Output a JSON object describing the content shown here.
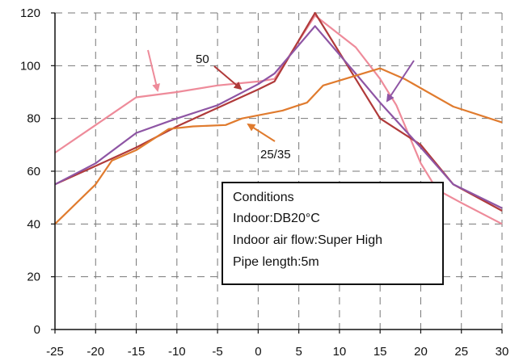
{
  "chart_data": {
    "type": "line",
    "title": "",
    "xlabel": "",
    "ylabel": "",
    "xlim": [
      -25,
      30
    ],
    "ylim": [
      0,
      120
    ],
    "x_ticks": [
      -25,
      -20,
      -15,
      -10,
      -5,
      0,
      5,
      10,
      15,
      20,
      25,
      30
    ],
    "y_ticks": [
      0,
      20,
      40,
      60,
      80,
      100,
      120
    ],
    "grid": "dashed",
    "series": [
      {
        "color": "#EE8B9A",
        "points": [
          [
            -25,
            67
          ],
          [
            -20,
            77.5
          ],
          [
            -15,
            88
          ],
          [
            -10,
            90
          ],
          [
            -5,
            92.5
          ],
          [
            0,
            94
          ],
          [
            2,
            95
          ],
          [
            7,
            119
          ],
          [
            12,
            107
          ],
          [
            15,
            95
          ],
          [
            17,
            85
          ],
          [
            20,
            63
          ],
          [
            22,
            53
          ],
          [
            25,
            48
          ],
          [
            30,
            40
          ]
        ]
      },
      {
        "color": "#B03A3A",
        "points": [
          [
            -25,
            55
          ],
          [
            -20,
            62
          ],
          [
            -15,
            69
          ],
          [
            -10,
            77
          ],
          [
            -5,
            84
          ],
          [
            0,
            91
          ],
          [
            2,
            94
          ],
          [
            7,
            120
          ],
          [
            12,
            95
          ],
          [
            15,
            80
          ],
          [
            20,
            70
          ],
          [
            24,
            55
          ],
          [
            30,
            45
          ]
        ]
      },
      {
        "color": "#8E55A4",
        "points": [
          [
            -25,
            55
          ],
          [
            -20,
            63
          ],
          [
            -15,
            74.5
          ],
          [
            -10,
            80
          ],
          [
            -5,
            85
          ],
          [
            0,
            93
          ],
          [
            2,
            97
          ],
          [
            7,
            115
          ],
          [
            12,
            97
          ],
          [
            15,
            86
          ],
          [
            20,
            69
          ],
          [
            24,
            55
          ],
          [
            30,
            46
          ]
        ]
      },
      {
        "color": "#E07B2E",
        "points": [
          [
            -25,
            40
          ],
          [
            -20,
            55
          ],
          [
            -18,
            64
          ],
          [
            -15,
            68
          ],
          [
            -11,
            76
          ],
          [
            -8,
            77
          ],
          [
            -4,
            77.5
          ],
          [
            -2,
            80
          ],
          [
            3,
            83
          ],
          [
            5,
            85
          ],
          [
            6,
            86
          ],
          [
            8,
            92.5
          ],
          [
            15,
            99
          ],
          [
            18,
            95
          ],
          [
            24,
            84.5
          ],
          [
            30,
            78.5
          ]
        ]
      }
    ],
    "annotations": [
      {
        "text": "50"
      },
      {
        "text": "25/35"
      }
    ],
    "legend": {
      "placement": "lower-right",
      "lines": [
        "Conditions",
        "Indoor:DB20°C",
        "Indoor air flow:Super High",
        "Pipe length:5m"
      ]
    }
  }
}
